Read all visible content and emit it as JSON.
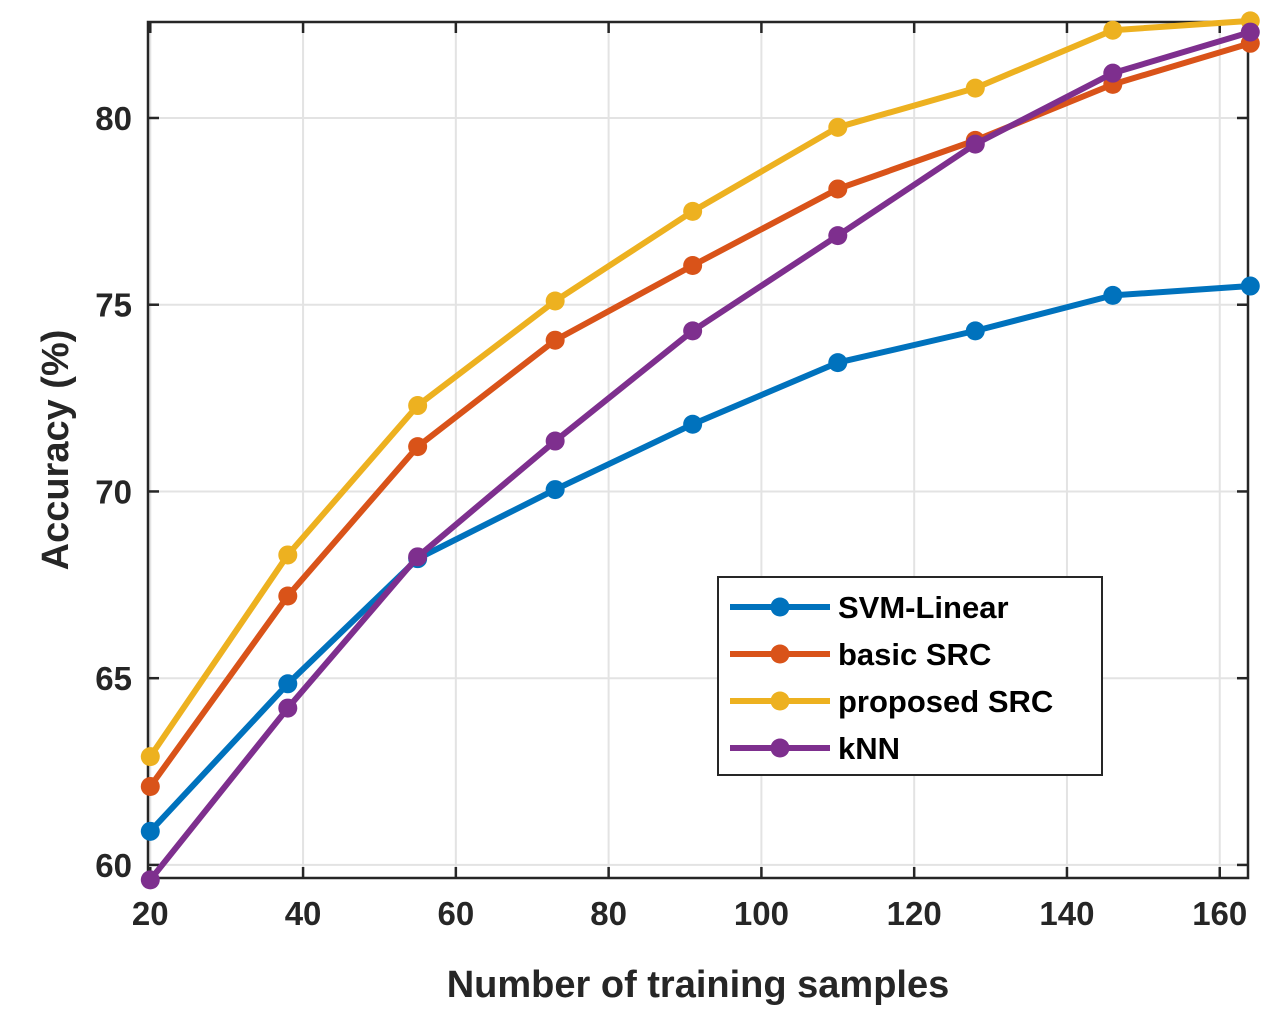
{
  "chart_data": {
    "type": "line",
    "title": "",
    "xlabel": "Number of training samples",
    "ylabel": "Accuracy (%)",
    "xlim": [
      19.7,
      163.7
    ],
    "ylim": [
      59.65,
      82.57
    ],
    "xticks": [
      20,
      40,
      60,
      80,
      100,
      120,
      140,
      160
    ],
    "yticks": [
      60,
      65,
      70,
      75,
      80
    ],
    "grid": true,
    "legend_position": "lower-right",
    "x": [
      20,
      38,
      55,
      73,
      91,
      110,
      128,
      146,
      164
    ],
    "series": [
      {
        "name": "SVM-Linear",
        "color": "#0072BD",
        "values": [
          60.9,
          64.85,
          68.2,
          70.05,
          71.8,
          73.45,
          74.3,
          75.25,
          75.5
        ]
      },
      {
        "name": "basic SRC",
        "color": "#D95319",
        "values": [
          62.1,
          67.2,
          71.2,
          74.05,
          76.05,
          78.1,
          79.4,
          80.9,
          82.0
        ]
      },
      {
        "name": "proposed SRC",
        "color": "#EDB120",
        "values": [
          62.9,
          68.3,
          72.3,
          75.1,
          77.5,
          79.75,
          80.8,
          82.35,
          82.6
        ]
      },
      {
        "name": "kNN",
        "color": "#7E2F8E",
        "values": [
          59.6,
          64.2,
          68.25,
          71.35,
          74.3,
          76.85,
          79.3,
          81.2,
          82.3
        ]
      }
    ]
  }
}
